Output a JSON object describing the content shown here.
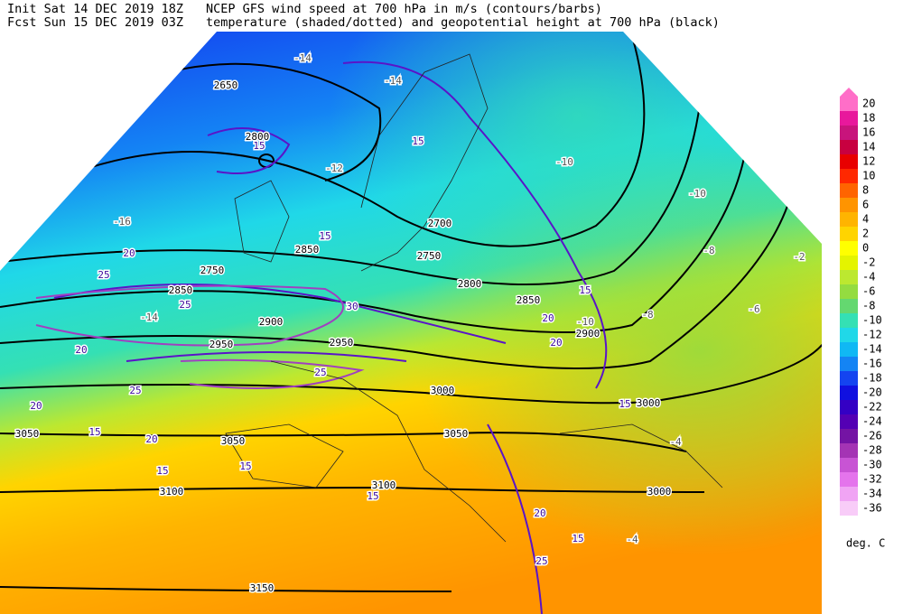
{
  "header": {
    "init": "Init  Sat 14 DEC 2019 18Z",
    "fcst": "Fcst Sun 15 DEC 2019 03Z",
    "line1": "NCEP GFS wind speed at 700 hPa in m/s (contours/barbs)",
    "line2": "temperature (shaded/dotted) and geopotential height at 700 hPa (black)"
  },
  "colorbar": {
    "ticks": [
      20,
      18,
      16,
      14,
      12,
      10,
      8,
      6,
      4,
      2,
      0,
      -2,
      -4,
      -6,
      -8,
      -10,
      -12,
      -14,
      -16,
      -18,
      -20,
      -22,
      -24,
      -26,
      -28,
      -30,
      -32,
      -34,
      -36
    ],
    "colors": [
      "#ff6ec8",
      "#e8189c",
      "#c8147c",
      "#c80040",
      "#e80000",
      "#ff2800",
      "#ff6400",
      "#ff9400",
      "#ffb400",
      "#ffd400",
      "#ffff00",
      "#e4f400",
      "#bce830",
      "#94dc40",
      "#64d870",
      "#34e0b4",
      "#20d8e8",
      "#10b8f4",
      "#1484f4",
      "#1444f0",
      "#1010e0",
      "#3400c4",
      "#5400b4",
      "#7414a4",
      "#a434b4",
      "#c854d4",
      "#e474ec",
      "#f0a4f4",
      "#f8ccf8"
    ],
    "unit": "deg. C"
  },
  "map": {
    "height_labels": [
      "2650",
      "2800",
      "2850",
      "2750",
      "2850",
      "2900",
      "2950",
      "2950",
      "3000",
      "3050",
      "3050",
      "3100",
      "3100",
      "3150",
      "3000",
      "3000",
      "2900",
      "2850",
      "2800",
      "2750",
      "2700",
      "3050"
    ],
    "temperature_labels": [
      "-14",
      "-14",
      "-12",
      "-10",
      "-10",
      "-8",
      "-6",
      "-4",
      "-4",
      "-2",
      "-8",
      "-10",
      "-14",
      "-16"
    ],
    "wind_labels": [
      "15",
      "15",
      "15",
      "20",
      "25",
      "25",
      "20",
      "30",
      "25",
      "20",
      "25",
      "15",
      "20",
      "15",
      "15",
      "15",
      "20",
      "15",
      "25",
      "15",
      "15",
      "20",
      "20"
    ]
  }
}
